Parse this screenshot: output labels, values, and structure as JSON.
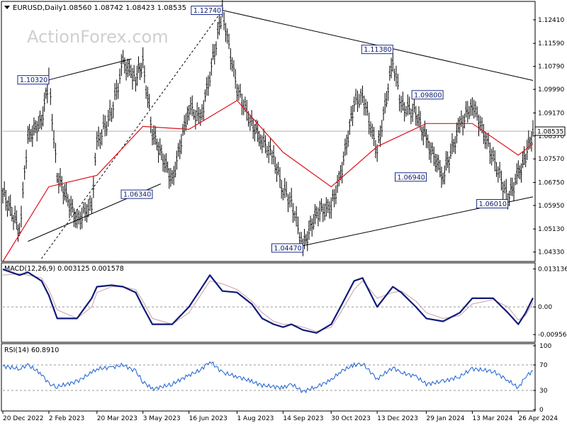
{
  "header": {
    "symbol": "EURUSD,Daily",
    "ohlc": "1.08560 1.08742 1.08423 1.08535"
  },
  "watermark": "ActionForex.com",
  "colors": {
    "background": "#ffffff",
    "frame": "#000000",
    "candle": "#000000",
    "moving_average": "#e0101a",
    "macd_main": "#0d1a7a",
    "macd_signal": "#c9a0a8",
    "rsi_line": "#1a5fd0",
    "level_line": "#b0b0b0",
    "label_border": "#1a2a8a",
    "last_price_label_bg": "#ffffff"
  },
  "chart_data": [
    {
      "type": "line",
      "pane": "price",
      "title": "EURUSD,Daily",
      "series_ohlc_last": {
        "open": 1.0856,
        "high": 1.08742,
        "low": 1.08423,
        "close": 1.08535
      },
      "x_ticks": [
        "20 Dec 2022",
        "2 Feb 2023",
        "20 Mar 2023",
        "3 May 2023",
        "16 Jun 2023",
        "1 Aug 2023",
        "14 Sep 2023",
        "30 Oct 2023",
        "13 Dec 2023",
        "29 Jan 2024",
        "13 Mar 2024",
        "26 Apr 2024"
      ],
      "y_ticks": [
        "1.12410",
        "1.11590",
        "1.10790",
        "1.09990",
        "1.09170",
        "1.08370",
        "1.07570",
        "1.06750",
        "1.05950",
        "1.05130",
        "1.04330"
      ],
      "ylim": [
        1.0405,
        1.13
      ],
      "last_price": "1.08535",
      "series": [
        {
          "kind": "price",
          "x": [
            "20 Dec 2022",
            "5 Jan 2023",
            "13 Jan 2023",
            "26 Jan 2023",
            "2 Feb 2023",
            "10 Feb 2023",
            "1 Mar 2023",
            "15 Mar 2023",
            "20 Mar 2023",
            "3 Apr 2023",
            "14 Apr 2023",
            "26 Apr 2023",
            "3 May 2023",
            "12 May 2023",
            "31 May 2023",
            "16 Jun 2023",
            "27 Jun 2023",
            "6 Jul 2023",
            "18 Jul 2023",
            "1 Aug 2023",
            "15 Aug 2023",
            "25 Aug 2023",
            "5 Sep 2023",
            "14 Sep 2023",
            "22 Sep 2023",
            "3 Oct 2023",
            "16 Oct 2023",
            "30 Oct 2023",
            "8 Nov 2023",
            "21 Nov 2023",
            "29 Nov 2023",
            "13 Dec 2023",
            "28 Dec 2023",
            "5 Jan 2024",
            "19 Jan 2024",
            "29 Jan 2024",
            "14 Feb 2024",
            "1 Mar 2024",
            "13 Mar 2024",
            "2 Apr 2024",
            "16 Apr 2024",
            "26 Apr 2024",
            "3 May 2024",
            "10 May 2024"
          ],
          "values": [
            1.064,
            1.051,
            1.083,
            1.089,
            1.103,
            1.07,
            1.054,
            1.06,
            1.081,
            1.092,
            1.109,
            1.104,
            1.109,
            1.085,
            1.068,
            1.094,
            1.089,
            1.105,
            1.127,
            1.1,
            1.088,
            1.082,
            1.076,
            1.065,
            1.061,
            1.045,
            1.057,
            1.059,
            1.07,
            1.095,
            1.098,
            1.078,
            1.11,
            1.094,
            1.092,
            1.082,
            1.07,
            1.087,
            1.095,
            1.076,
            1.062,
            1.07,
            1.077,
            1.0854
          ]
        },
        {
          "kind": "moving_average",
          "x": [
            "20 Dec 2022",
            "2 Feb 2023",
            "20 Mar 2023",
            "3 May 2023",
            "16 Jun 2023",
            "1 Aug 2023",
            "14 Sep 2023",
            "30 Oct 2023",
            "13 Dec 2023",
            "29 Jan 2024",
            "13 Mar 2024",
            "26 Apr 2024",
            "10 May 2024"
          ],
          "values": [
            1.04,
            1.066,
            1.07,
            1.087,
            1.086,
            1.096,
            1.078,
            1.066,
            1.08,
            1.088,
            1.088,
            1.077,
            1.081
          ]
        }
      ],
      "annotations": [
        {
          "label": "1.10320",
          "value": 1.1032
        },
        {
          "label": "1.12740",
          "value": 1.1274
        },
        {
          "label": "1.11380",
          "value": 1.1138
        },
        {
          "label": "1.09800",
          "value": 1.098
        },
        {
          "label": "1.06340",
          "value": 1.0634
        },
        {
          "label": "1.06940",
          "value": 1.0694
        },
        {
          "label": "1.06010",
          "value": 1.0601
        },
        {
          "label": "1.04470",
          "value": 1.0447
        }
      ]
    },
    {
      "type": "line",
      "pane": "macd",
      "title": "MACD(12,26,9) 0.003125 0.001578",
      "y_ticks": [
        "0.013136",
        "0.00",
        "-0.009564"
      ],
      "ylim": [
        -0.0115,
        0.0145
      ],
      "series": [
        {
          "kind": "macd_main",
          "values": [
            0.013,
            0.011,
            0.012,
            0.009,
            0.004,
            -0.004,
            -0.004,
            0.003,
            0.007,
            0.0075,
            0.007,
            0.005,
            0.0,
            -0.006,
            -0.006,
            0.0,
            0.006,
            0.011,
            0.0055,
            0.005,
            0.001,
            -0.004,
            -0.006,
            -0.007,
            -0.006,
            -0.008,
            -0.009,
            -0.006,
            0.0,
            0.009,
            0.01,
            0.0,
            0.007,
            0.005,
            0.0,
            -0.004,
            -0.005,
            -0.002,
            0.003,
            0.003,
            -0.002,
            -0.006,
            -0.002,
            0.0031
          ]
        },
        {
          "kind": "macd_signal",
          "values": [
            0.011,
            0.0115,
            0.011,
            0.01,
            0.006,
            -0.001,
            -0.004,
            0.0,
            0.005,
            0.007,
            0.007,
            0.006,
            0.002,
            -0.004,
            -0.006,
            -0.002,
            0.004,
            0.009,
            0.008,
            0.006,
            0.002,
            -0.002,
            -0.005,
            -0.006,
            -0.006,
            -0.007,
            -0.0085,
            -0.007,
            -0.002,
            0.006,
            0.009,
            0.003,
            0.005,
            0.0055,
            0.002,
            -0.002,
            -0.004,
            -0.003,
            0.001,
            0.0025,
            0.0,
            -0.0045,
            -0.003,
            0.0016
          ]
        }
      ]
    },
    {
      "type": "line",
      "pane": "rsi",
      "title": "RSI(14) 60.8910",
      "y_ticks": [
        "100",
        "70",
        "30",
        "0"
      ],
      "ylim": [
        0,
        100
      ],
      "levels": [
        70,
        30
      ],
      "series": [
        {
          "kind": "rsi",
          "values": [
            68,
            64,
            70,
            56,
            40,
            36,
            44,
            58,
            64,
            66,
            70,
            60,
            44,
            32,
            40,
            54,
            62,
            76,
            58,
            52,
            44,
            38,
            36,
            34,
            40,
            28,
            36,
            46,
            60,
            70,
            72,
            48,
            66,
            58,
            52,
            40,
            44,
            52,
            64,
            60,
            46,
            34,
            52,
            60.9
          ]
        }
      ]
    }
  ]
}
